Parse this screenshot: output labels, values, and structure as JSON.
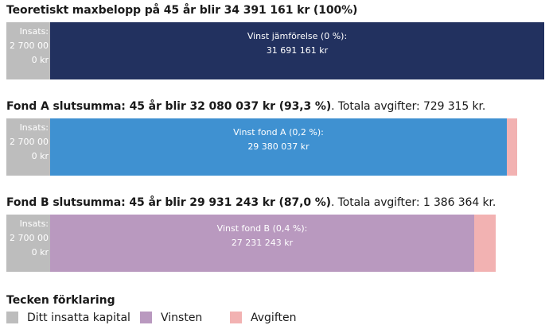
{
  "colors": {
    "insats": "#bdbdbd",
    "jamforelse": "#22315f",
    "fond_a": "#3f91d1",
    "fond_b": "#b999bf",
    "avgift": "#f2b2b2"
  },
  "theoretical": {
    "heading_prefix": "Teoretiskt maxbelopp på 45 år blir ",
    "heading_amount": "34 391 161 kr",
    "heading_suffix": " (100%)",
    "insats_label": "Insats:",
    "insats_value": "2 700 00",
    "insats_unit": "0 kr",
    "win_label": "Vinst jämförelse (0 %):",
    "win_value": "31 691 161 kr",
    "win_share": 1.0,
    "fee_share": 0.0
  },
  "fond_a": {
    "heading_prefix": "Fond A slutsumma: 45 år blir ",
    "heading_amount": "32 080 037 kr",
    "heading_pct": " (93,3 %)",
    "heading_suffix": ". Totala avgifter: 729 315 kr.",
    "insats_label": "Insats:",
    "insats_value": "2 700 00",
    "insats_unit": "0 kr",
    "win_label": "Vinst fond A (0,2 %):",
    "win_value": "29 380 037 kr",
    "win_share": 0.933,
    "fee_share": 0.021
  },
  "fond_b": {
    "heading_prefix": "Fond B slutsumma: 45 år blir ",
    "heading_amount": "29 931 243 kr",
    "heading_pct": " (87,0 %)",
    "heading_suffix": ". Totala avgifter: 1 386 364 kr.",
    "insats_label": "Insats:",
    "insats_value": "2 700 00",
    "insats_unit": "0 kr",
    "win_label": "Vinst fond B (0,4 %):",
    "win_value": "27 231 243 kr",
    "win_share": 0.87,
    "fee_share": 0.04
  },
  "legend": {
    "title": "Tecken förklaring",
    "items": [
      {
        "label": "Ditt insatta kapital",
        "color": "#bdbdbd"
      },
      {
        "label": "Vinsten",
        "color": "#b999bf"
      },
      {
        "label": "Avgiften",
        "color": "#f2b2b2"
      }
    ]
  }
}
